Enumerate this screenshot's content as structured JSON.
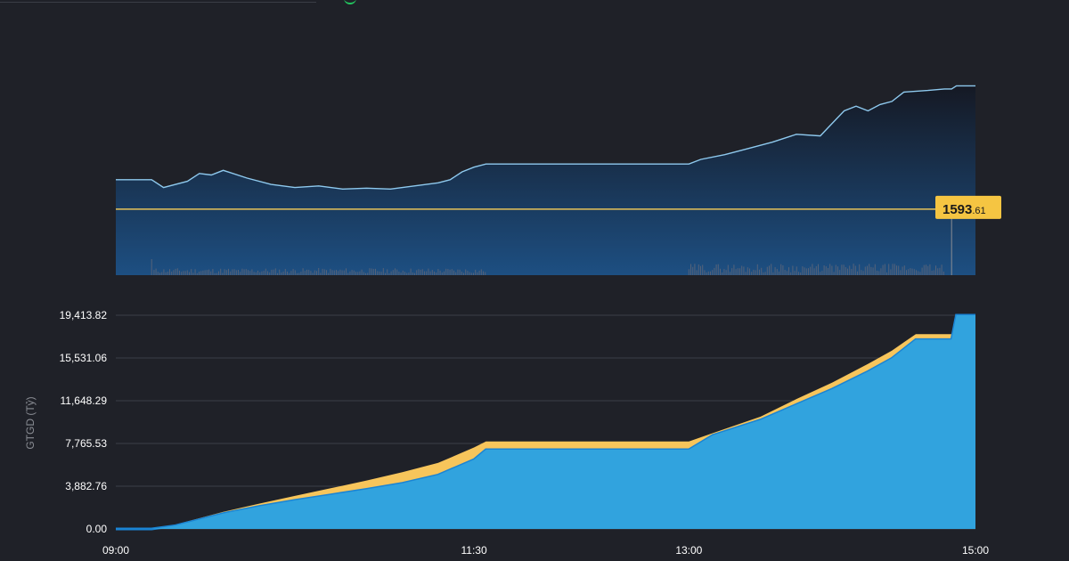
{
  "colors": {
    "background": "#1f2128",
    "index_line": "#8ec9ee",
    "reference_line": "#e8c35a",
    "price_badge": "#f5c542",
    "cumulative_yesterday": "#f7c55b",
    "cumulative_today": "#31a3de",
    "cumulative_today_edge": "#1a84d4",
    "grid": "#3b3e47",
    "tick_text": "#ffffff",
    "axis_label_text": "#8a8d94"
  },
  "chart_data": [
    {
      "type": "line",
      "role": "index-price-with-volume",
      "x_range": [
        "09:00",
        "15:00"
      ],
      "reference_value": 1593.61,
      "badge": {
        "integer_part": "1593",
        "decimal_part": ".61"
      },
      "y_range": [
        1591.5,
        1598.3
      ],
      "series": [
        {
          "values": [
            [
              "09:00",
              1594.55
            ],
            [
              "09:15",
              1594.55
            ],
            [
              "09:20",
              1594.3
            ],
            [
              "09:30",
              1594.5
            ],
            [
              "09:35",
              1594.75
            ],
            [
              "09:40",
              1594.7
            ],
            [
              "09:45",
              1594.85
            ],
            [
              "09:55",
              1594.6
            ],
            [
              "10:05",
              1594.4
            ],
            [
              "10:15",
              1594.3
            ],
            [
              "10:25",
              1594.35
            ],
            [
              "10:35",
              1594.25
            ],
            [
              "10:45",
              1594.28
            ],
            [
              "10:55",
              1594.25
            ],
            [
              "11:05",
              1594.35
            ],
            [
              "11:15",
              1594.45
            ],
            [
              "11:20",
              1594.55
            ],
            [
              "11:25",
              1594.8
            ],
            [
              "11:30",
              1594.95
            ],
            [
              "11:35",
              1595.05
            ],
            [
              "12:00",
              1595.05
            ],
            [
              "13:00",
              1595.05
            ],
            [
              "13:05",
              1595.2
            ],
            [
              "13:15",
              1595.35
            ],
            [
              "13:25",
              1595.55
            ],
            [
              "13:35",
              1595.75
            ],
            [
              "13:45",
              1596.0
            ],
            [
              "13:55",
              1595.95
            ],
            [
              "14:00",
              1596.35
            ],
            [
              "14:05",
              1596.75
            ],
            [
              "14:10",
              1596.9
            ],
            [
              "14:15",
              1596.75
            ],
            [
              "14:20",
              1596.95
            ],
            [
              "14:25",
              1597.05
            ],
            [
              "14:30",
              1597.35
            ],
            [
              "14:40",
              1597.4
            ],
            [
              "14:47",
              1597.45
            ],
            [
              "14:50",
              1597.45
            ],
            [
              "14:52",
              1597.55
            ],
            [
              "15:00",
              1597.55
            ]
          ]
        }
      ]
    },
    {
      "type": "area",
      "role": "cumulative-trading-value",
      "ylabel": "GTGD (Tỷ)",
      "x_ticks": [
        "09:00",
        "11:30",
        "13:00",
        "15:00"
      ],
      "y_ticks": [
        "19,413.82",
        "15,531.06",
        "11,648.29",
        "7,765.53",
        "3,882.76",
        "0.00"
      ],
      "ylim": [
        0,
        19413.82
      ],
      "grid": true,
      "series": [
        {
          "role": "previous-session",
          "values": [
            [
              "09:00",
              0
            ],
            [
              "09:15",
              0
            ],
            [
              "09:25",
              400
            ],
            [
              "09:45",
              1550
            ],
            [
              "10:00",
              2300
            ],
            [
              "10:15",
              3000
            ],
            [
              "10:30",
              3700
            ],
            [
              "10:45",
              4400
            ],
            [
              "11:00",
              5150
            ],
            [
              "11:15",
              6000
            ],
            [
              "11:30",
              7400
            ],
            [
              "11:35",
              7950
            ],
            [
              "13:00",
              7950
            ],
            [
              "13:10",
              8700
            ],
            [
              "13:30",
              10200
            ],
            [
              "13:45",
              11800
            ],
            [
              "14:00",
              13300
            ],
            [
              "14:15",
              15000
            ],
            [
              "14:25",
              16200
            ],
            [
              "14:35",
              17700
            ],
            [
              "14:50",
              17700
            ],
            [
              "14:52",
              19414
            ],
            [
              "15:00",
              19414
            ]
          ]
        },
        {
          "role": "current-session",
          "values": [
            [
              "09:00",
              0
            ],
            [
              "09:15",
              0
            ],
            [
              "09:25",
              300
            ],
            [
              "09:45",
              1400
            ],
            [
              "10:00",
              2050
            ],
            [
              "10:15",
              2600
            ],
            [
              "10:30",
              3100
            ],
            [
              "10:45",
              3600
            ],
            [
              "11:00",
              4150
            ],
            [
              "11:15",
              4900
            ],
            [
              "11:30",
              6300
            ],
            [
              "11:35",
              7200
            ],
            [
              "13:00",
              7200
            ],
            [
              "13:10",
              8500
            ],
            [
              "13:30",
              9900
            ],
            [
              "13:45",
              11300
            ],
            [
              "14:00",
              12700
            ],
            [
              "14:15",
              14300
            ],
            [
              "14:25",
              15500
            ],
            [
              "14:35",
              17200
            ],
            [
              "14:50",
              17200
            ],
            [
              "14:52",
              19414
            ],
            [
              "15:00",
              19414
            ]
          ]
        }
      ]
    }
  ]
}
